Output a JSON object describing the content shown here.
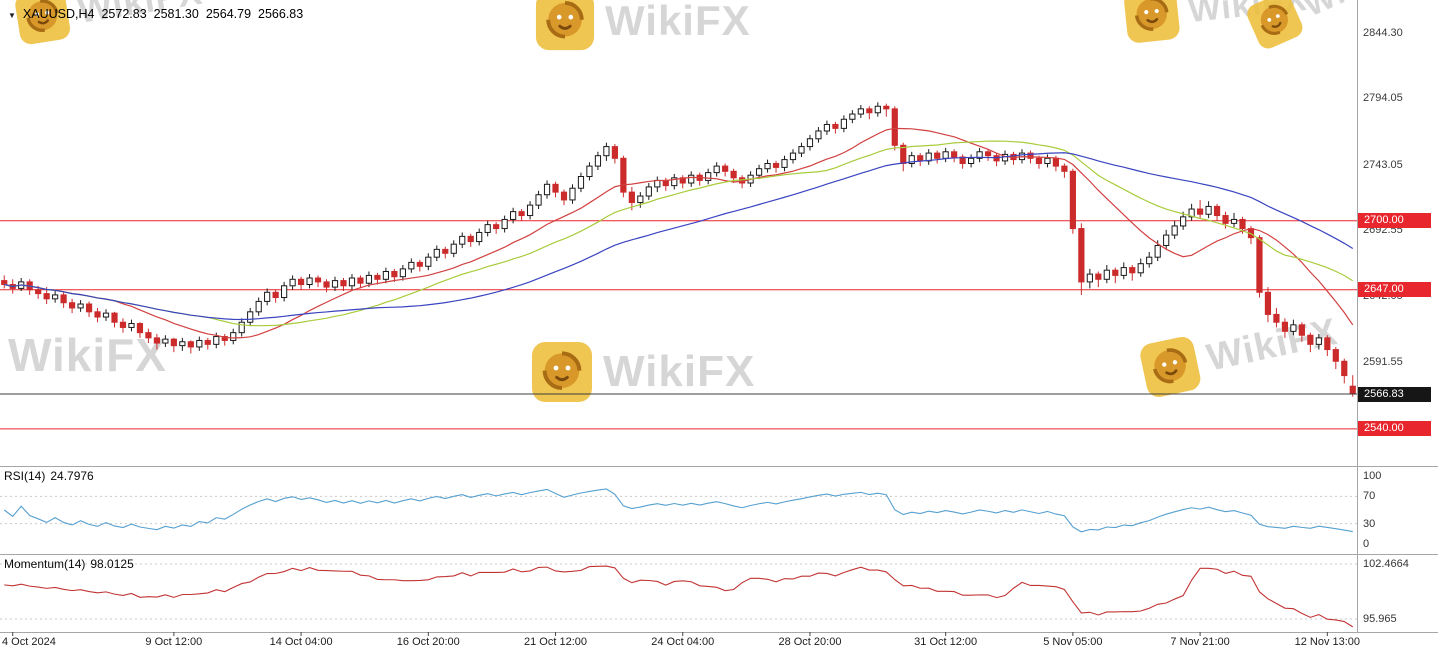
{
  "header": {
    "symbol": "XAUUSD,H4",
    "open": "2572.83",
    "high": "2581.30",
    "low": "2564.79",
    "close": "2566.83"
  },
  "watermark": {
    "text": "WikiFX"
  },
  "rsi_panel": {
    "name": "RSI(14)",
    "value": "24.7976",
    "line_color": "#56a0d0",
    "levels": [
      {
        "label": "100",
        "value": 100,
        "dashed": false
      },
      {
        "label": "70",
        "value": 70,
        "dashed": true
      },
      {
        "label": "30",
        "value": 30,
        "dashed": true
      },
      {
        "label": "0",
        "value": 0,
        "dashed": false
      }
    ]
  },
  "momentum_panel": {
    "name": "Momentum(14)",
    "value": "98.0125",
    "line_color": "#c23434",
    "levels": [
      {
        "label": "102.4664",
        "value": 102.4664,
        "dashed": true
      },
      {
        "label": "95.965",
        "value": 95.965,
        "dashed": true
      }
    ]
  },
  "colors": {
    "up_body": "#ffffff",
    "up_stroke": "#1a1a1a",
    "down": "#cc2b2b",
    "sr_line": "#e8262d",
    "current_line": "#3c3c3c",
    "separator": "#a6a6a6",
    "watermark_gold": "#eebe3b"
  },
  "chart_data": {
    "type": "candlestick",
    "symbol": "XAUUSD",
    "timeframe": "H4",
    "title": "XAUUSD,H4",
    "ylim": [
      2511,
      2870
    ],
    "y_ticks": [
      {
        "label": "2844.30",
        "price": 2844.3
      },
      {
        "label": "2794.05",
        "price": 2794.05
      },
      {
        "label": "2743.05",
        "price": 2743.05
      },
      {
        "label": "2692.55",
        "price": 2692.55
      },
      {
        "label": "2642.05",
        "price": 2642.05
      },
      {
        "label": "2591.55",
        "price": 2591.55
      }
    ],
    "sr_lines": [
      {
        "label": "2700.00",
        "price": 2700.0
      },
      {
        "label": "2647.00",
        "price": 2647.0
      },
      {
        "label": "2540.00",
        "price": 2540.0
      }
    ],
    "current_price": {
      "label": "2566.83",
      "price": 2566.83
    },
    "x_ticks": [
      {
        "label": "4 Oct 2024",
        "index": 1
      },
      {
        "label": "9 Oct 12:00",
        "index": 20
      },
      {
        "label": "14 Oct 04:00",
        "index": 35
      },
      {
        "label": "16 Oct 20:00",
        "index": 50
      },
      {
        "label": "21 Oct 12:00",
        "index": 65
      },
      {
        "label": "24 Oct 04:00",
        "index": 80
      },
      {
        "label": "28 Oct 20:00",
        "index": 95
      },
      {
        "label": "31 Oct 12:00",
        "index": 111
      },
      {
        "label": "5 Nov 05:00",
        "index": 126
      },
      {
        "label": "7 Nov 21:00",
        "index": 141
      },
      {
        "label": "12 Nov 13:00",
        "index": 156
      }
    ],
    "overlays": [
      {
        "type": "sma",
        "period": 14,
        "color": "#d24040"
      },
      {
        "type": "sma",
        "period": 25,
        "color": "#a8cc3c"
      },
      {
        "type": "sma",
        "period": 45,
        "color": "#3a44c0"
      }
    ],
    "indicators": [
      {
        "name": "RSI",
        "period": 14,
        "current": 24.7976
      },
      {
        "name": "Momentum",
        "period": 14,
        "current": 98.0125
      }
    ],
    "ohlc": [
      [
        2654,
        2658,
        2648,
        2651
      ],
      [
        2651,
        2655,
        2644,
        2648
      ],
      [
        2648,
        2656,
        2646,
        2653
      ],
      [
        2653,
        2655,
        2643,
        2647
      ],
      [
        2647,
        2650,
        2640,
        2644
      ],
      [
        2644,
        2649,
        2636,
        2640
      ],
      [
        2640,
        2646,
        2637,
        2643
      ],
      [
        2643,
        2645,
        2633,
        2637
      ],
      [
        2637,
        2640,
        2629,
        2633
      ],
      [
        2633,
        2639,
        2630,
        2636
      ],
      [
        2636,
        2638,
        2626,
        2630
      ],
      [
        2630,
        2633,
        2622,
        2626
      ],
      [
        2626,
        2632,
        2623,
        2629
      ],
      [
        2629,
        2630,
        2618,
        2622
      ],
      [
        2622,
        2625,
        2614,
        2618
      ],
      [
        2618,
        2624,
        2615,
        2621
      ],
      [
        2621,
        2622,
        2610,
        2614
      ],
      [
        2614,
        2617,
        2606,
        2610
      ],
      [
        2610,
        2613,
        2601,
        2606
      ],
      [
        2606,
        2612,
        2603,
        2609
      ],
      [
        2609,
        2610,
        2599,
        2604
      ],
      [
        2604,
        2610,
        2600,
        2607
      ],
      [
        2607,
        2608,
        2598,
        2603
      ],
      [
        2603,
        2611,
        2600,
        2608
      ],
      [
        2608,
        2610,
        2601,
        2605
      ],
      [
        2605,
        2614,
        2602,
        2611
      ],
      [
        2611,
        2613,
        2604,
        2608
      ],
      [
        2608,
        2617,
        2605,
        2614
      ],
      [
        2614,
        2625,
        2611,
        2622
      ],
      [
        2622,
        2633,
        2619,
        2630
      ],
      [
        2630,
        2641,
        2627,
        2638
      ],
      [
        2638,
        2648,
        2635,
        2645
      ],
      [
        2645,
        2647,
        2637,
        2641
      ],
      [
        2641,
        2653,
        2638,
        2650
      ],
      [
        2650,
        2658,
        2647,
        2655
      ],
      [
        2655,
        2657,
        2647,
        2651
      ],
      [
        2651,
        2659,
        2648,
        2656
      ],
      [
        2656,
        2658,
        2649,
        2653
      ],
      [
        2653,
        2655,
        2645,
        2649
      ],
      [
        2649,
        2657,
        2646,
        2654
      ],
      [
        2654,
        2656,
        2646,
        2650
      ],
      [
        2650,
        2659,
        2647,
        2656
      ],
      [
        2656,
        2658,
        2648,
        2652
      ],
      [
        2652,
        2661,
        2649,
        2658
      ],
      [
        2658,
        2660,
        2651,
        2655
      ],
      [
        2655,
        2664,
        2652,
        2661
      ],
      [
        2661,
        2663,
        2653,
        2657
      ],
      [
        2657,
        2666,
        2654,
        2663
      ],
      [
        2663,
        2671,
        2660,
        2668
      ],
      [
        2668,
        2670,
        2661,
        2665
      ],
      [
        2665,
        2675,
        2662,
        2672
      ],
      [
        2672,
        2681,
        2669,
        2678
      ],
      [
        2678,
        2680,
        2671,
        2675
      ],
      [
        2675,
        2685,
        2672,
        2682
      ],
      [
        2682,
        2691,
        2679,
        2688
      ],
      [
        2688,
        2690,
        2680,
        2684
      ],
      [
        2684,
        2694,
        2681,
        2691
      ],
      [
        2691,
        2700,
        2688,
        2697
      ],
      [
        2697,
        2699,
        2690,
        2694
      ],
      [
        2694,
        2704,
        2691,
        2701
      ],
      [
        2701,
        2710,
        2698,
        2707
      ],
      [
        2707,
        2709,
        2700,
        2704
      ],
      [
        2704,
        2715,
        2701,
        2712
      ],
      [
        2712,
        2723,
        2709,
        2720
      ],
      [
        2720,
        2731,
        2717,
        2728
      ],
      [
        2728,
        2730,
        2718,
        2722
      ],
      [
        2722,
        2724,
        2712,
        2716
      ],
      [
        2716,
        2728,
        2713,
        2725
      ],
      [
        2725,
        2737,
        2722,
        2734
      ],
      [
        2734,
        2745,
        2731,
        2742
      ],
      [
        2742,
        2753,
        2739,
        2750
      ],
      [
        2750,
        2760,
        2746,
        2757
      ],
      [
        2757,
        2759,
        2744,
        2748
      ],
      [
        2748,
        2750,
        2718,
        2722
      ],
      [
        2722,
        2726,
        2708,
        2714
      ],
      [
        2714,
        2722,
        2710,
        2719
      ],
      [
        2719,
        2729,
        2716,
        2726
      ],
      [
        2726,
        2734,
        2722,
        2731
      ],
      [
        2731,
        2733,
        2723,
        2727
      ],
      [
        2727,
        2736,
        2724,
        2733
      ],
      [
        2733,
        2735,
        2725,
        2729
      ],
      [
        2729,
        2738,
        2726,
        2735
      ],
      [
        2735,
        2737,
        2727,
        2731
      ],
      [
        2731,
        2740,
        2728,
        2737
      ],
      [
        2737,
        2745,
        2734,
        2742
      ],
      [
        2742,
        2744,
        2734,
        2738
      ],
      [
        2738,
        2740,
        2729,
        2733
      ],
      [
        2733,
        2735,
        2725,
        2729
      ],
      [
        2729,
        2738,
        2726,
        2735
      ],
      [
        2735,
        2743,
        2732,
        2740
      ],
      [
        2740,
        2747,
        2737,
        2744
      ],
      [
        2744,
        2746,
        2737,
        2741
      ],
      [
        2741,
        2750,
        2738,
        2747
      ],
      [
        2747,
        2755,
        2744,
        2752
      ],
      [
        2752,
        2760,
        2749,
        2757
      ],
      [
        2757,
        2766,
        2754,
        2763
      ],
      [
        2763,
        2772,
        2760,
        2769
      ],
      [
        2769,
        2777,
        2766,
        2774
      ],
      [
        2774,
        2776,
        2767,
        2771
      ],
      [
        2771,
        2781,
        2768,
        2778
      ],
      [
        2778,
        2785,
        2775,
        2782
      ],
      [
        2782,
        2789,
        2779,
        2786
      ],
      [
        2786,
        2788,
        2778,
        2783
      ],
      [
        2783,
        2791,
        2780,
        2788
      ],
      [
        2788,
        2790,
        2780,
        2786
      ],
      [
        2786,
        2788,
        2754,
        2758
      ],
      [
        2758,
        2760,
        2738,
        2744
      ],
      [
        2744,
        2753,
        2741,
        2750
      ],
      [
        2750,
        2752,
        2742,
        2746
      ],
      [
        2746,
        2755,
        2743,
        2752
      ],
      [
        2752,
        2754,
        2744,
        2748
      ],
      [
        2748,
        2756,
        2745,
        2753
      ],
      [
        2753,
        2755,
        2745,
        2749
      ],
      [
        2749,
        2751,
        2740,
        2744
      ],
      [
        2744,
        2751,
        2741,
        2748
      ],
      [
        2748,
        2756,
        2745,
        2753
      ],
      [
        2753,
        2755,
        2746,
        2750
      ],
      [
        2750,
        2752,
        2742,
        2746
      ],
      [
        2746,
        2754,
        2743,
        2751
      ],
      [
        2751,
        2753,
        2743,
        2747
      ],
      [
        2747,
        2755,
        2744,
        2752
      ],
      [
        2752,
        2754,
        2744,
        2748
      ],
      [
        2748,
        2750,
        2740,
        2744
      ],
      [
        2744,
        2751,
        2741,
        2748
      ],
      [
        2748,
        2750,
        2738,
        2742
      ],
      [
        2742,
        2744,
        2733,
        2738
      ],
      [
        2738,
        2740,
        2690,
        2694
      ],
      [
        2694,
        2698,
        2643,
        2653
      ],
      [
        2653,
        2663,
        2648,
        2659
      ],
      [
        2659,
        2661,
        2649,
        2655
      ],
      [
        2655,
        2666,
        2652,
        2662
      ],
      [
        2662,
        2664,
        2652,
        2658
      ],
      [
        2658,
        2668,
        2655,
        2664
      ],
      [
        2664,
        2666,
        2654,
        2660
      ],
      [
        2660,
        2671,
        2657,
        2667
      ],
      [
        2667,
        2676,
        2664,
        2672
      ],
      [
        2672,
        2685,
        2669,
        2681
      ],
      [
        2681,
        2693,
        2678,
        2689
      ],
      [
        2689,
        2700,
        2686,
        2696
      ],
      [
        2696,
        2707,
        2693,
        2703
      ],
      [
        2703,
        2713,
        2700,
        2709
      ],
      [
        2709,
        2716,
        2702,
        2705
      ],
      [
        2705,
        2715,
        2702,
        2711
      ],
      [
        2711,
        2713,
        2700,
        2704
      ],
      [
        2704,
        2707,
        2694,
        2698
      ],
      [
        2698,
        2706,
        2695,
        2701
      ],
      [
        2701,
        2703,
        2690,
        2694
      ],
      [
        2694,
        2696,
        2682,
        2687
      ],
      [
        2687,
        2689,
        2641,
        2645
      ],
      [
        2645,
        2649,
        2622,
        2628
      ],
      [
        2628,
        2633,
        2618,
        2622
      ],
      [
        2622,
        2625,
        2610,
        2615
      ],
      [
        2615,
        2624,
        2612,
        2620
      ],
      [
        2620,
        2622,
        2607,
        2612
      ],
      [
        2612,
        2614,
        2599,
        2605
      ],
      [
        2605,
        2613,
        2601,
        2610
      ],
      [
        2610,
        2612,
        2596,
        2601
      ],
      [
        2601,
        2603,
        2586,
        2592
      ],
      [
        2592,
        2594,
        2575,
        2581
      ],
      [
        2572.83,
        2581.3,
        2564.79,
        2566.83
      ]
    ]
  }
}
